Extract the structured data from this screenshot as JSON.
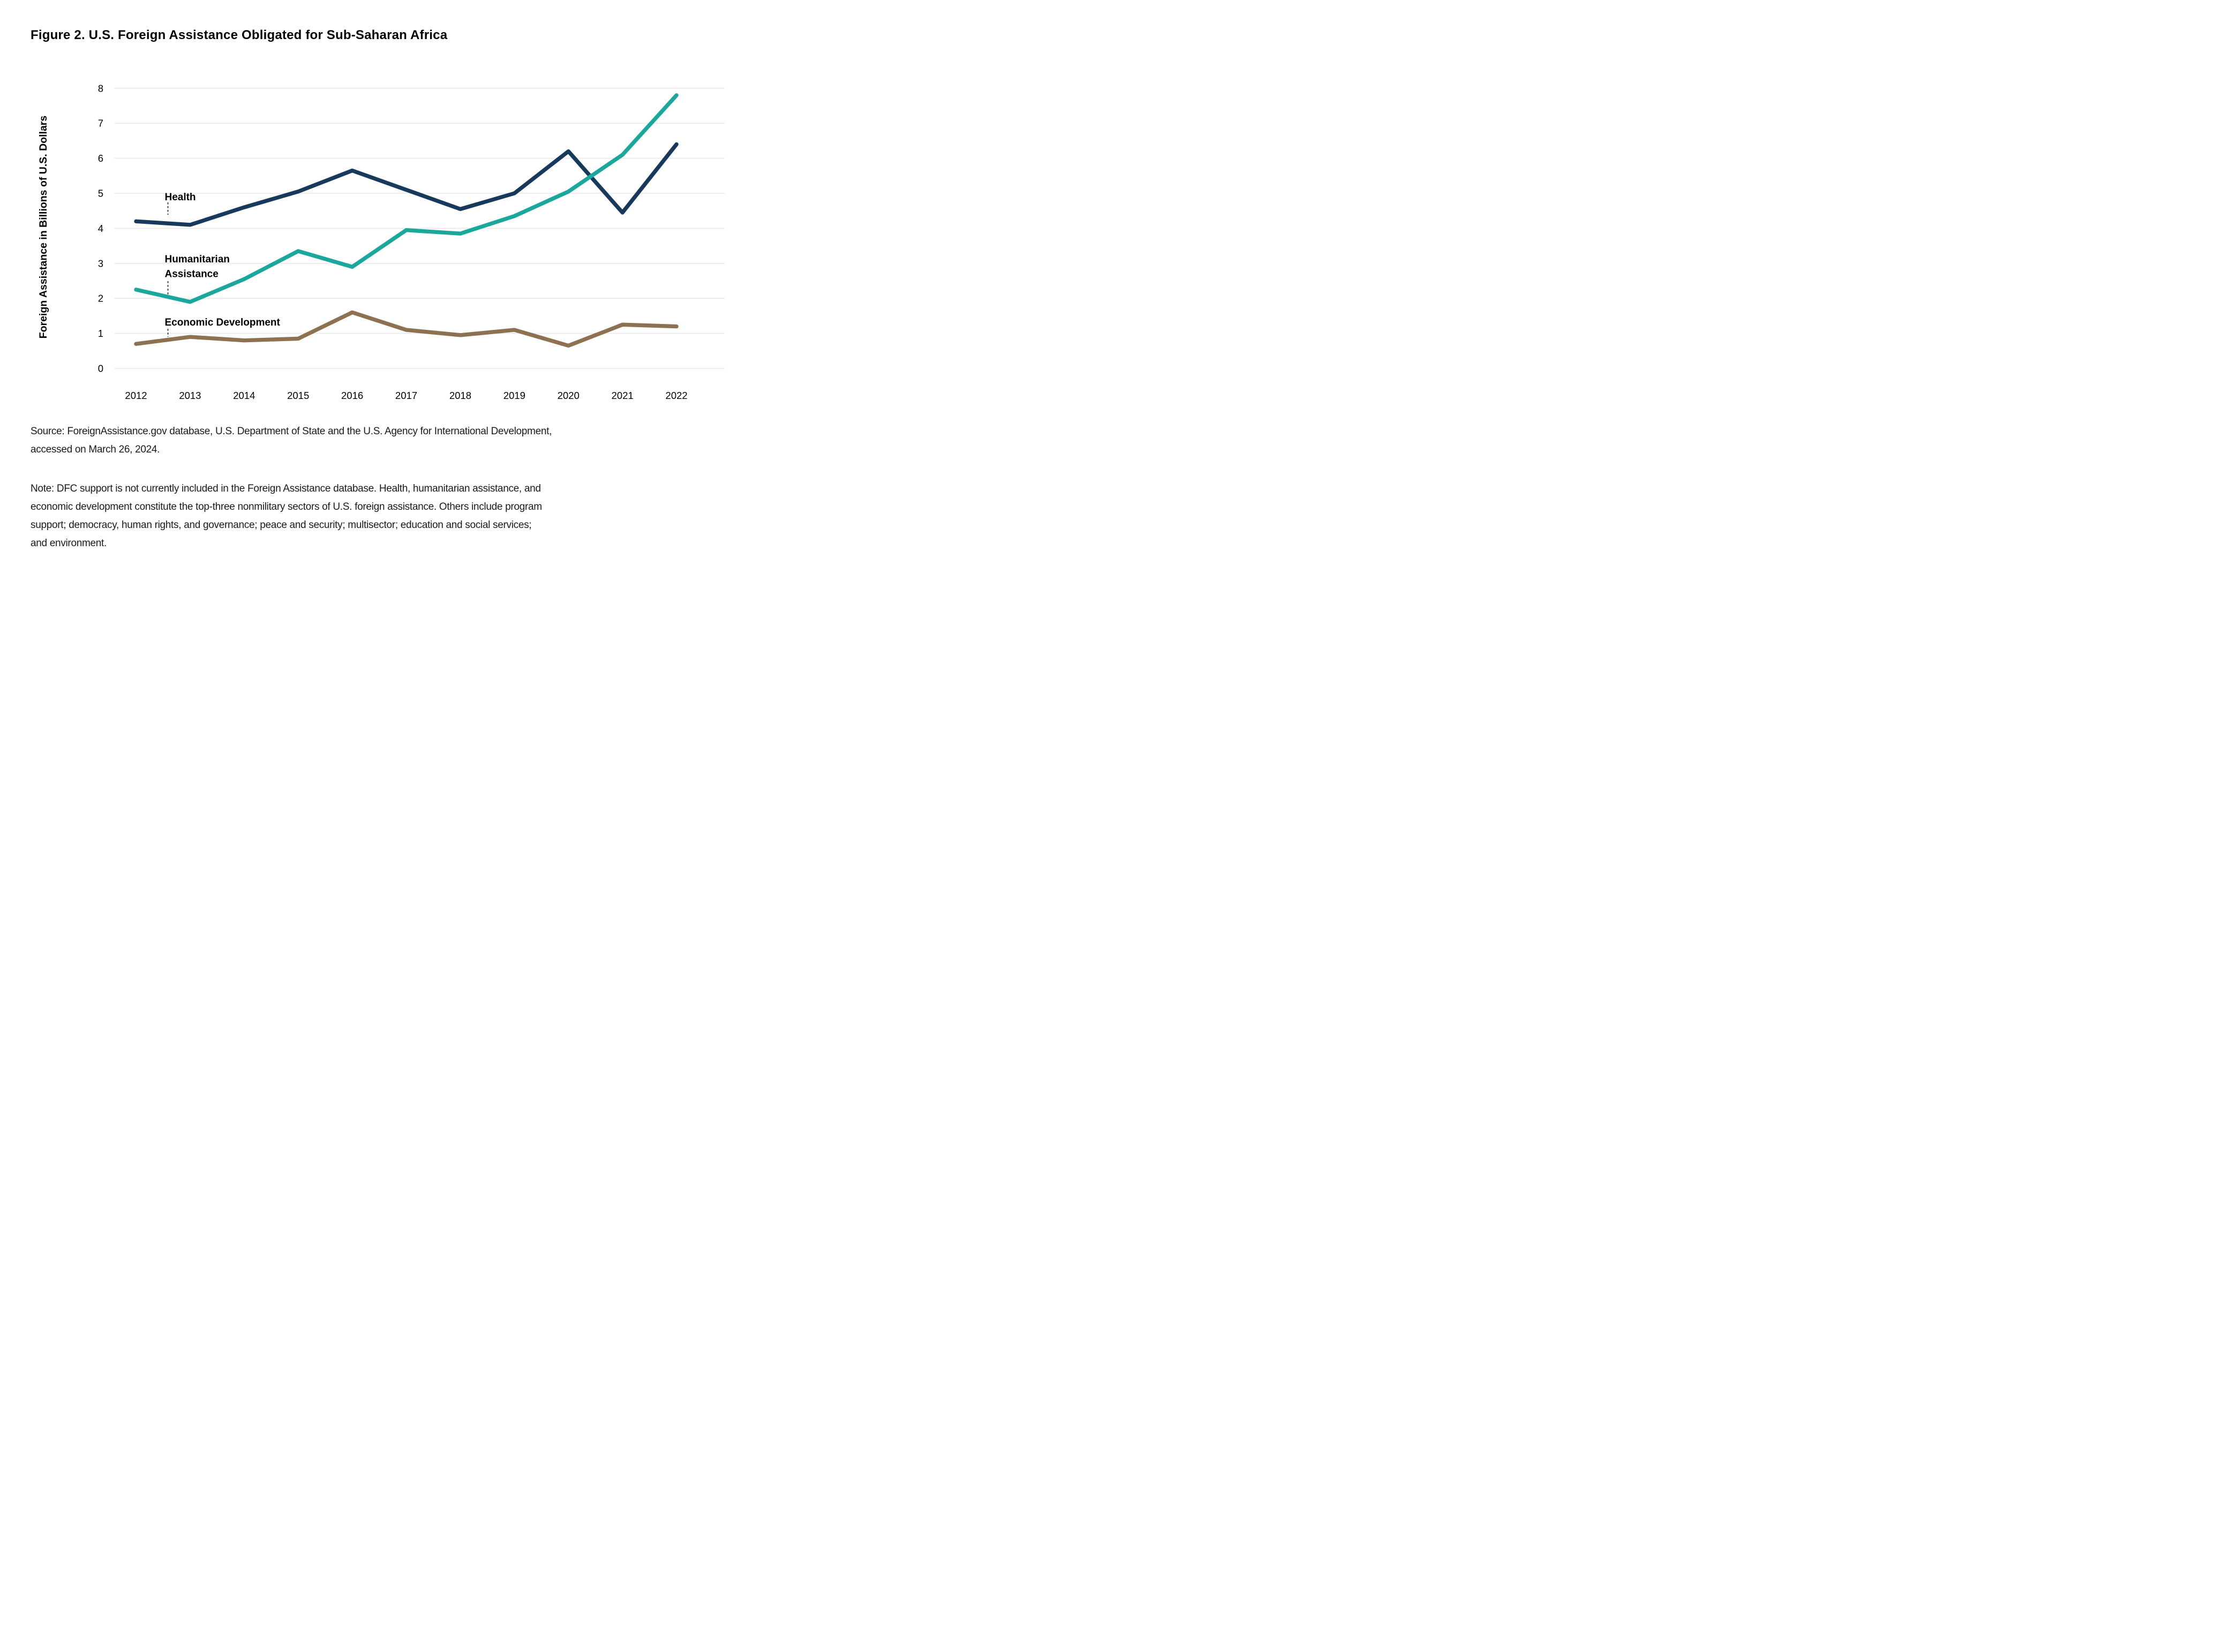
{
  "figure": {
    "title": "Figure 2. U.S. Foreign Assistance Obligated for Sub-Saharan Africa",
    "source_line1": "Source: ForeignAssistance.gov database, U.S. Department of State and the U.S. Agency for International Development,",
    "source_line2": "accessed on March 26, 2024.",
    "note_line1": "Note: DFC support is not currently included in the Foreign Assistance database. Health, humanitarian assistance, and",
    "note_line2": "economic development constitute the top-three nonmilitary sectors of U.S. foreign assistance. Others include program",
    "note_line3": "support; democracy, human rights, and governance; peace and security; multisector; education and social services;",
    "note_line4": "and environment."
  },
  "chart_data": {
    "type": "line",
    "title": "Figure 2. U.S. Foreign Assistance Obligated for Sub-Saharan Africa",
    "xlabel": "",
    "ylabel": "Foreign Assistance in Billions of U.S. Dollars",
    "x": [
      2012,
      2013,
      2014,
      2015,
      2016,
      2017,
      2018,
      2019,
      2020,
      2021,
      2022
    ],
    "ylim": [
      0,
      8
    ],
    "yticks": [
      0,
      1,
      2,
      3,
      4,
      5,
      6,
      7,
      8
    ],
    "grid": true,
    "grid_color": "#E9E9E7",
    "legend_position": "inline-annotations",
    "series": [
      {
        "name": "Health",
        "color": "#17395C",
        "values": [
          4.2,
          4.1,
          4.6,
          5.05,
          5.65,
          5.1,
          4.55,
          5.0,
          6.2,
          4.45,
          6.4
        ]
      },
      {
        "name": "Humanitarian Assistance",
        "color": "#1BA79C",
        "values": [
          2.25,
          1.9,
          2.55,
          3.35,
          2.9,
          3.95,
          3.85,
          4.35,
          5.05,
          6.1,
          7.8
        ]
      },
      {
        "name": "Economic Development",
        "color": "#8E7150",
        "values": [
          0.7,
          0.9,
          0.8,
          0.85,
          1.6,
          1.1,
          0.95,
          1.1,
          0.65,
          1.25,
          1.2
        ]
      }
    ],
    "annotations": [
      {
        "series": "Health",
        "lines": [
          "Health"
        ],
        "x": 2012.53,
        "baseline_values": [
          4.8
        ],
        "leader": {
          "x": 2012.59,
          "from": 4.74,
          "to": 4.39
        }
      },
      {
        "series": "Humanitarian Assistance",
        "lines": [
          "Humanitarian",
          "Assistance"
        ],
        "x": 2012.53,
        "baseline_values": [
          3.03,
          2.61
        ],
        "leader": {
          "x": 2012.59,
          "from": 2.49,
          "to": 2.06
        }
      },
      {
        "series": "Economic Development",
        "lines": [
          "Economic Development"
        ],
        "x": 2012.53,
        "baseline_values": [
          1.22
        ],
        "leader": {
          "x": 2012.59,
          "from": 1.13,
          "to": 0.9
        }
      }
    ]
  }
}
